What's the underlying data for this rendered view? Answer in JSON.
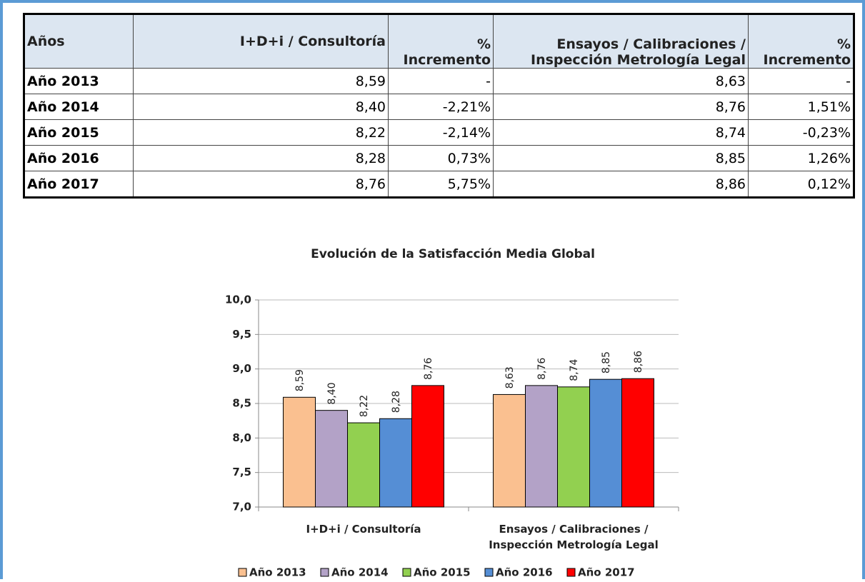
{
  "table": {
    "header": [
      "Años",
      "I+D+i / Consultoría",
      "% Incremento",
      "Ensayos / Calibraciones / Inspección Metrología Legal",
      "% Incremento"
    ],
    "rows": [
      [
        "Año 2013",
        "8,59",
        "-",
        "8,63",
        "-"
      ],
      [
        "Año 2014",
        "8,40",
        "-2,21%",
        "8,76",
        "1,51%"
      ],
      [
        "Año 2015",
        "8,22",
        "-2,14%",
        "8,74",
        "-0,23%"
      ],
      [
        "Año 2016",
        "8,28",
        "0,73%",
        "8,85",
        "1,26%"
      ],
      [
        "Año 2017",
        "8,76",
        "5,75%",
        "8,86",
        "0,12%"
      ]
    ]
  },
  "chart_data": {
    "type": "bar",
    "title": "Evolución de la Satisfacción Media Global",
    "categories": [
      "I+D+i / Consultoría",
      "Ensayos / Calibraciones / Inspección Metrología Legal"
    ],
    "series": [
      {
        "name": "Año 2013",
        "color": "#fac090",
        "values": [
          8.59,
          8.63
        ],
        "value_labels": [
          "8,59",
          "8,63"
        ]
      },
      {
        "name": "Año 2014",
        "color": "#b3a2c7",
        "values": [
          8.4,
          8.76
        ],
        "value_labels": [
          "8,40",
          "8,76"
        ]
      },
      {
        "name": "Año 2015",
        "color": "#92d050",
        "values": [
          8.22,
          8.74
        ],
        "value_labels": [
          "8,22",
          "8,74"
        ]
      },
      {
        "name": "Año 2016",
        "color": "#558ed5",
        "values": [
          8.28,
          8.85
        ],
        "value_labels": [
          "8,28",
          "8,85"
        ]
      },
      {
        "name": "Año 2017",
        "color": "#ff0000",
        "values": [
          8.76,
          8.86
        ],
        "value_labels": [
          "8,76",
          "8,86"
        ]
      }
    ],
    "ylim": [
      7,
      10
    ],
    "yticks": [
      {
        "value": 7,
        "label": "7,0"
      },
      {
        "value": 7.5,
        "label": "7,5"
      },
      {
        "value": 8,
        "label": "8,0"
      },
      {
        "value": 8.5,
        "label": "8,5"
      },
      {
        "value": 9,
        "label": "9,0"
      },
      {
        "value": 9.5,
        "label": "9,5"
      },
      {
        "value": 10,
        "label": "10,0"
      }
    ],
    "grid": true,
    "legend": "bottom"
  }
}
